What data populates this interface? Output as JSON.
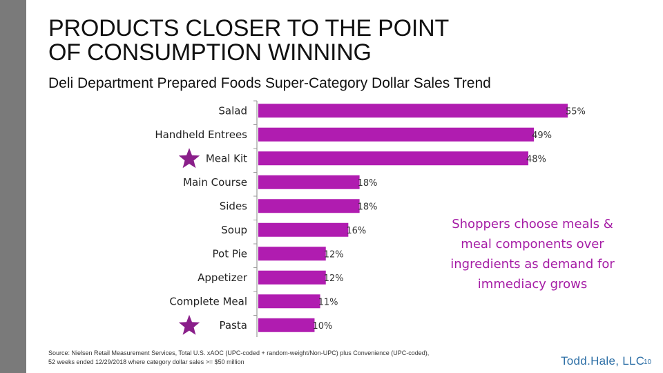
{
  "slide": {
    "title_line1": "PRODUCTS CLOSER TO THE POINT",
    "title_line2": "OF CONSUMPTION WINNING",
    "subtitle": "Deli Department Prepared Foods Super-Category Dollar Sales Trend",
    "callout": "Shoppers choose meals & meal components over ingredients as demand for immediacy grows",
    "source_line1": "Source: Nielsen Retail Measurement Services, Total U.S. xAOC (UPC-coded + random-weight/Non-UPC) plus Convenience (UPC-coded),",
    "source_line2": "52 weeks ended 12/29/2018 where category dollar sales >= $50 million",
    "brand": "Todd.Hale, LLC",
    "page_number": "10"
  },
  "colors": {
    "bar": "#b01cb0",
    "star": "#8a1f8a",
    "axis": "#999999",
    "left_band": "#7a7a7a"
  },
  "chart_data": {
    "type": "bar",
    "orientation": "horizontal",
    "categories": [
      "Salad",
      "Handheld Entrees",
      "Meal Kit",
      "Main Course",
      "Sides",
      "Soup",
      "Pot Pie",
      "Appetizer",
      "Complete Meal",
      "Pasta"
    ],
    "values": [
      55,
      49,
      48,
      18,
      18,
      16,
      12,
      12,
      11,
      10
    ],
    "labels": [
      "55%",
      "49%",
      "48%",
      "18%",
      "18%",
      "16%",
      "12%",
      "12%",
      "11%",
      "10%"
    ],
    "starred": [
      "Meal Kit",
      "Pasta"
    ],
    "unit": "%",
    "xlim": [
      0,
      55
    ]
  }
}
